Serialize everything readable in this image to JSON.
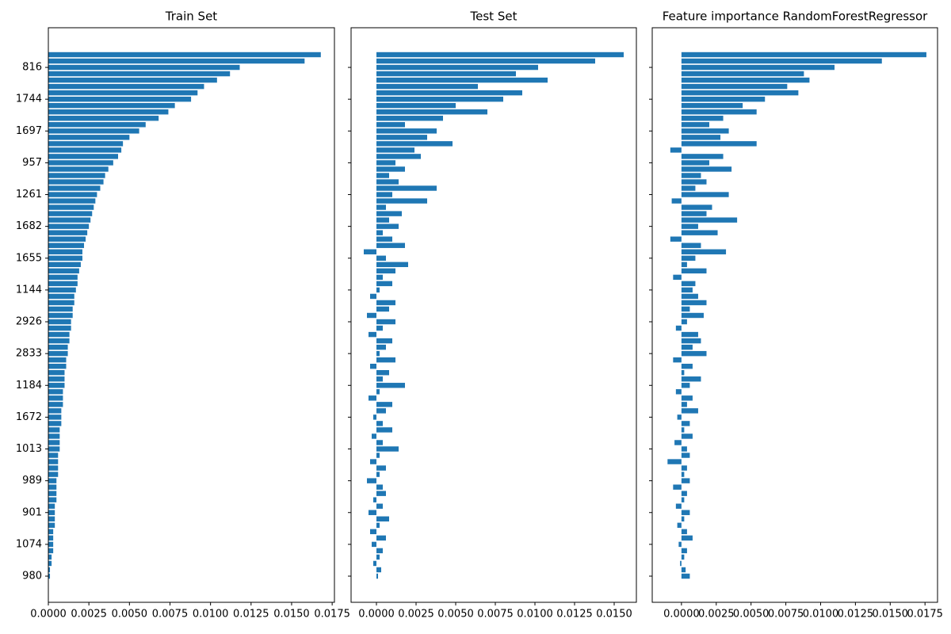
{
  "chart_data": [
    {
      "type": "bar",
      "orientation": "horizontal",
      "title": "Train Set",
      "color": "#1f77b4",
      "categories": [
        null,
        null,
        "816",
        null,
        null,
        null,
        null,
        "1744",
        null,
        null,
        null,
        null,
        "1697",
        null,
        null,
        null,
        null,
        "957",
        null,
        null,
        null,
        null,
        "1261",
        null,
        null,
        null,
        null,
        "1682",
        null,
        null,
        null,
        null,
        "1655",
        null,
        null,
        null,
        null,
        "1144",
        null,
        null,
        null,
        null,
        "2926",
        null,
        null,
        null,
        null,
        "2833",
        null,
        null,
        null,
        null,
        "1184",
        null,
        null,
        null,
        null,
        "1672",
        null,
        null,
        null,
        null,
        "1013",
        null,
        null,
        null,
        null,
        "989",
        null,
        null,
        null,
        null,
        "901",
        null,
        null,
        null,
        null,
        "1074",
        null,
        null,
        null,
        null,
        "980"
      ],
      "values": [
        0.0168,
        0.0158,
        0.0118,
        0.0112,
        0.0104,
        0.0096,
        0.0092,
        0.0088,
        0.0078,
        0.0074,
        0.0068,
        0.006,
        0.0056,
        0.005,
        0.0046,
        0.0045,
        0.0043,
        0.004,
        0.0037,
        0.0035,
        0.0034,
        0.0032,
        0.003,
        0.0029,
        0.0028,
        0.0027,
        0.0026,
        0.0025,
        0.0024,
        0.0023,
        0.0022,
        0.0021,
        0.0021,
        0.002,
        0.0019,
        0.0018,
        0.0018,
        0.0017,
        0.0016,
        0.0016,
        0.0015,
        0.0015,
        0.0014,
        0.0014,
        0.0013,
        0.0013,
        0.0012,
        0.0012,
        0.0011,
        0.0011,
        0.001,
        0.001,
        0.001,
        0.0009,
        0.0009,
        0.0009,
        0.0008,
        0.0008,
        0.0008,
        0.0007,
        0.0007,
        0.0007,
        0.0007,
        0.0006,
        0.0006,
        0.0006,
        0.0006,
        0.0005,
        0.0005,
        0.0005,
        0.0005,
        0.0004,
        0.0004,
        0.0004,
        0.0004,
        0.0003,
        0.0003,
        0.0003,
        0.0003,
        0.0002,
        0.0002,
        0.0001,
        0.0001
      ],
      "xlim": [
        0,
        0.01764
      ],
      "xticks": [
        {
          "value": 0,
          "label": "0.0000"
        },
        {
          "value": 0.0025,
          "label": "0.0025"
        },
        {
          "value": 0.005,
          "label": "0.0050"
        },
        {
          "value": 0.0075,
          "label": "0.0075"
        },
        {
          "value": 0.01,
          "label": "0.0100"
        },
        {
          "value": 0.0125,
          "label": "0.0125"
        },
        {
          "value": 0.015,
          "label": "0.0150"
        },
        {
          "value": 0.0175,
          "label": "0.0175"
        }
      ]
    },
    {
      "type": "bar",
      "orientation": "horizontal",
      "title": "Test Set",
      "color": "#1f77b4",
      "values": [
        0.0156,
        0.0138,
        0.0102,
        0.0088,
        0.0108,
        0.0064,
        0.0092,
        0.008,
        0.005,
        0.007,
        0.0042,
        0.0018,
        0.0038,
        0.0032,
        0.0048,
        0.0024,
        0.0028,
        0.0012,
        0.0018,
        0.0008,
        0.0014,
        0.0038,
        0.001,
        0.0032,
        0.0006,
        0.0016,
        0.0008,
        0.0014,
        0.0004,
        0.001,
        0.0018,
        -0.0008,
        0.0006,
        0.002,
        0.0012,
        0.0004,
        0.001,
        0.0002,
        -0.0004,
        0.0012,
        0.0008,
        -0.0006,
        0.0012,
        0.0004,
        -0.0005,
        0.001,
        0.0006,
        0.0002,
        0.0012,
        -0.0004,
        0.0008,
        0.0004,
        0.0018,
        0.0002,
        -0.0005,
        0.001,
        0.0006,
        -0.0002,
        0.0004,
        0.001,
        -0.0003,
        0.0004,
        0.0014,
        0.0002,
        -0.0004,
        0.0006,
        0.0002,
        -0.0006,
        0.0004,
        0.0006,
        -0.0002,
        0.0004,
        -0.0005,
        0.0008,
        0.0002,
        -0.0004,
        0.0006,
        -0.0003,
        0.0004,
        0.0002,
        -0.0002,
        0.0003,
        0.0001
      ],
      "xlim": [
        -0.0016,
        0.0164
      ],
      "xticks": [
        {
          "value": 0,
          "label": "0.0000"
        },
        {
          "value": 0.0025,
          "label": "0.0025"
        },
        {
          "value": 0.005,
          "label": "0.0050"
        },
        {
          "value": 0.0075,
          "label": "0.0075"
        },
        {
          "value": 0.01,
          "label": "0.0100"
        },
        {
          "value": 0.0125,
          "label": "0.0125"
        },
        {
          "value": 0.015,
          "label": "0.0150"
        }
      ]
    },
    {
      "type": "bar",
      "orientation": "horizontal",
      "title": "Feature importance RandomForestRegressor",
      "color": "#1f77b4",
      "values": [
        0.0176,
        0.0144,
        0.011,
        0.0088,
        0.0092,
        0.0076,
        0.0084,
        0.006,
        0.0044,
        0.0054,
        0.003,
        0.002,
        0.0034,
        0.0028,
        0.0054,
        -0.0008,
        0.003,
        0.002,
        0.0036,
        0.0014,
        0.0018,
        0.001,
        0.0034,
        -0.0007,
        0.0022,
        0.0018,
        0.004,
        0.0012,
        0.0026,
        -0.0008,
        0.0014,
        0.0032,
        0.001,
        0.0004,
        0.0018,
        -0.0006,
        0.001,
        0.0008,
        0.0012,
        0.0018,
        0.0006,
        0.0016,
        0.0004,
        -0.0004,
        0.0012,
        0.0014,
        0.0008,
        0.0018,
        -0.0006,
        0.0008,
        0.0002,
        0.0014,
        0.0006,
        -0.0004,
        0.0008,
        0.0004,
        0.0012,
        -0.0003,
        0.0006,
        0.0002,
        0.0008,
        -0.0005,
        0.0004,
        0.0006,
        -0.001,
        0.0004,
        0.0002,
        0.0006,
        -0.0006,
        0.0004,
        0.0002,
        -0.0004,
        0.0006,
        0.0002,
        -0.0003,
        0.0004,
        0.0008,
        -0.0002,
        0.0004,
        0.0002,
        -0.0001,
        0.0003,
        0.0006
      ],
      "xlim": [
        -0.0021,
        0.0184
      ],
      "xticks": [
        {
          "value": 0,
          "label": "0.0000"
        },
        {
          "value": 0.0025,
          "label": "0.0025"
        },
        {
          "value": 0.005,
          "label": "0.0050"
        },
        {
          "value": 0.0075,
          "label": "0.0075"
        },
        {
          "value": 0.01,
          "label": "0.0100"
        },
        {
          "value": 0.0125,
          "label": "0.0125"
        },
        {
          "value": 0.015,
          "label": "0.0150"
        },
        {
          "value": 0.0175,
          "label": "0.0175"
        }
      ]
    }
  ]
}
